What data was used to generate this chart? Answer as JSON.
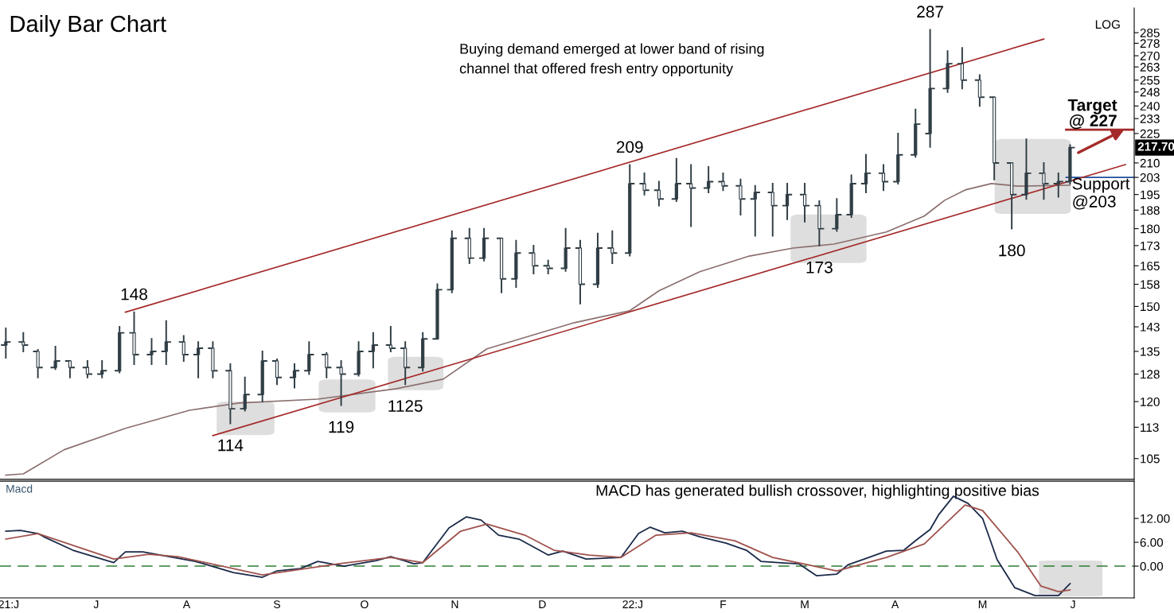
{
  "chart_data": [
    {
      "type": "candlestick",
      "title": "Daily Bar Chart",
      "color": "#2f3d45",
      "log": true,
      "tick_labels": "y",
      "x": [
        "2021-05-31",
        "2021-06-06",
        "2021-06-11",
        "2021-06-17",
        "2021-06-22",
        "2021-06-28",
        "2021-07-03",
        "2021-07-09",
        "2021-07-14",
        "2021-07-20",
        "2021-07-25",
        "2021-07-31",
        "2021-08-05",
        "2021-08-10",
        "2021-08-16",
        "2021-08-21",
        "2021-08-27",
        "2021-09-01",
        "2021-09-07",
        "2021-09-12",
        "2021-09-18",
        "2021-09-23",
        "2021-09-29",
        "2021-10-04",
        "2021-10-10",
        "2021-10-15",
        "2021-10-21",
        "2021-10-26",
        "2021-10-31",
        "2021-11-06",
        "2021-11-11",
        "2021-11-17",
        "2021-11-22",
        "2021-11-28",
        "2021-12-03",
        "2021-12-09",
        "2021-12-14",
        "2021-12-20",
        "2021-12-25",
        "2021-12-31",
        "2022-01-05",
        "2022-01-10",
        "2022-01-16",
        "2022-01-21",
        "2022-01-27",
        "2022-02-01",
        "2022-02-07",
        "2022-02-12",
        "2022-02-18",
        "2022-02-23",
        "2022-03-01",
        "2022-03-06",
        "2022-03-12",
        "2022-03-17",
        "2022-03-22",
        "2022-03-28",
        "2022-04-02",
        "2022-04-08",
        "2022-04-13",
        "2022-04-19",
        "2022-04-24",
        "2022-04-30",
        "2022-05-05",
        "2022-05-11",
        "2022-05-16",
        "2022-05-22",
        "2022-05-27",
        "2022-05-31"
      ],
      "ohlc": [
        [
          137,
          142.5,
          133,
          138
        ],
        [
          138,
          141,
          135,
          137
        ],
        [
          135,
          135.5,
          127,
          130
        ],
        [
          130,
          136.5,
          129.5,
          132
        ],
        [
          132,
          132,
          127,
          130
        ],
        [
          130,
          132,
          127,
          128
        ],
        [
          128,
          132,
          127,
          129
        ],
        [
          129,
          143,
          128.5,
          141
        ],
        [
          141,
          148,
          131,
          134
        ],
        [
          134,
          139,
          131,
          135
        ],
        [
          135,
          145,
          131,
          138
        ],
        [
          138,
          140,
          132,
          134
        ],
        [
          134,
          138,
          127,
          136
        ],
        [
          136,
          138,
          127,
          129
        ],
        [
          129,
          131,
          114,
          118
        ],
        [
          118,
          127,
          117.5,
          122
        ],
        [
          122,
          135,
          120,
          132
        ],
        [
          132,
          132.5,
          125,
          127
        ],
        [
          127,
          131,
          124,
          129
        ],
        [
          129,
          138,
          128,
          134
        ],
        [
          134,
          134.5,
          127,
          130
        ],
        [
          130,
          132,
          119,
          128
        ],
        [
          128,
          138,
          127.5,
          135
        ],
        [
          135,
          141,
          130,
          137
        ],
        [
          137,
          143,
          135,
          136
        ],
        [
          136,
          138,
          125,
          130
        ],
        [
          130,
          141,
          129,
          139
        ],
        [
          139,
          158,
          139,
          156
        ],
        [
          156,
          179,
          155,
          176
        ],
        [
          176,
          180,
          166,
          168
        ],
        [
          168,
          180,
          167,
          176
        ],
        [
          176,
          176,
          155,
          160
        ],
        [
          160,
          175,
          157,
          170
        ],
        [
          170,
          173,
          162,
          165
        ],
        [
          165,
          167,
          162,
          164
        ],
        [
          164,
          180,
          163,
          172
        ],
        [
          172,
          175,
          151,
          158
        ],
        [
          158,
          178,
          157,
          172
        ],
        [
          172,
          179,
          166,
          170
        ],
        [
          170,
          209,
          169,
          200
        ],
        [
          200,
          205,
          195,
          197
        ],
        [
          197,
          201,
          190,
          193
        ],
        [
          193,
          212,
          192,
          200
        ],
        [
          200,
          209,
          181,
          198
        ],
        [
          198,
          208,
          196,
          201
        ],
        [
          201,
          205,
          197,
          199
        ],
        [
          199,
          202,
          186,
          193
        ],
        [
          193,
          199,
          177,
          196
        ],
        [
          196,
          200,
          177,
          190
        ],
        [
          190,
          200,
          184,
          195
        ],
        [
          195,
          200,
          183,
          190
        ],
        [
          190,
          192,
          173,
          180
        ],
        [
          180,
          193,
          179,
          186
        ],
        [
          186,
          204,
          185,
          200
        ],
        [
          200,
          214,
          196,
          205
        ],
        [
          205,
          209,
          197,
          201
        ],
        [
          201,
          225,
          200,
          214
        ],
        [
          214,
          238,
          213,
          230
        ],
        [
          225,
          287,
          218,
          250
        ],
        [
          250,
          273,
          248,
          265
        ],
        [
          265,
          275,
          250,
          255
        ],
        [
          255,
          258,
          240,
          245
        ],
        [
          245,
          245,
          202,
          210
        ],
        [
          210,
          210,
          180,
          195
        ],
        [
          195,
          222,
          193,
          205
        ],
        [
          205,
          210,
          193,
          200
        ],
        [
          200,
          205,
          194,
          201
        ],
        [
          201,
          219,
          200,
          217.7
        ]
      ],
      "series": [
        {
          "type": "line",
          "color": "#8b6f6f",
          "x": [
            "2021-05-31",
            "2021-06-06",
            "2021-06-20",
            "2021-07-11",
            "2021-08-02",
            "2021-08-19",
            "2021-09-15",
            "2021-10-12",
            "2021-10-28",
            "2021-11-12",
            "2021-12-12",
            "2021-12-31",
            "2022-01-10",
            "2022-01-24",
            "2022-02-10",
            "2022-02-25",
            "2022-03-11",
            "2022-03-29",
            "2022-04-11",
            "2022-04-18",
            "2022-04-25",
            "2022-05-04",
            "2022-05-13",
            "2022-05-31"
          ],
          "values": [
            101,
            101.3,
            107.2,
            112.7,
            117.6,
            119.6,
            120.7,
            123.7,
            126.5,
            135.8,
            144.4,
            148.5,
            155.6,
            162.7,
            168.8,
            172,
            173.6,
            178.6,
            185.4,
            192.4,
            197.1,
            200.1,
            198.9,
            199.3
          ]
        },
        {
          "type": "line",
          "color": "#a52a2a",
          "x": [
            "2021-07-11",
            "2022-05-22"
          ],
          "values": [
            148,
            280.8
          ]
        },
        {
          "type": "line",
          "color": "#a52a2a",
          "x": [
            "2021-08-10",
            "2022-06-19"
          ],
          "values": [
            110.8,
            209.2
          ]
        }
      ],
      "xlim": [
        "2021-05-29",
        "2022-06-22"
      ],
      "ylim": [
        100,
        302
      ],
      "yticks": [
        105,
        113,
        120,
        128,
        135,
        143,
        150,
        158,
        165,
        173,
        180,
        188,
        195,
        203,
        210,
        225,
        233,
        240,
        248,
        255,
        263,
        270,
        278,
        285
      ],
      "ref_lines": [
        {
          "axis": "y",
          "value": 227,
          "label": "Target\n@ 227",
          "color": "#a52a2a"
        },
        {
          "axis": "y",
          "value": 203,
          "label": "Support\n@203",
          "color": "#1f4e9a"
        }
      ],
      "annotations": [
        "Buying demand emerged at lower band of rising\nchannel that offered fresh entry opportunity",
        "LOG",
        "217.70",
        {
          "text": "148",
          "x": "2021-07-14",
          "y": 148
        },
        {
          "text": "114",
          "x": "2021-08-16",
          "y": 114
        },
        {
          "text": "119",
          "x": "2021-09-23",
          "y": 119
        },
        {
          "text": "1125",
          "x": "2021-10-15",
          "y": 125
        },
        {
          "text": "209",
          "x": "2021-12-31",
          "y": 209
        },
        {
          "text": "173",
          "x": "2022-03-06",
          "y": 173
        },
        {
          "text": "287",
          "x": "2022-04-13",
          "y": 287
        },
        {
          "text": "180",
          "x": "2022-05-11",
          "y": 180
        }
      ]
    },
    {
      "type": "line",
      "title": "Macd",
      "series": [
        {
          "color": "#1b2a49",
          "x": [
            "2021-05-31",
            "2021-06-05",
            "2021-06-11",
            "2021-06-13",
            "2021-06-23",
            "2021-07-07",
            "2021-07-11",
            "2021-07-17",
            "2021-07-26",
            "2021-08-04",
            "2021-08-17",
            "2021-08-27",
            "2021-09-01",
            "2021-09-09",
            "2021-09-15",
            "2021-09-24",
            "2021-10-05",
            "2021-10-10",
            "2021-10-18",
            "2021-10-21",
            "2021-10-30",
            "2021-11-05",
            "2021-11-10",
            "2021-11-16",
            "2021-11-23",
            "2021-12-03",
            "2021-12-08",
            "2021-12-16",
            "2021-12-28",
            "2022-01-03",
            "2022-01-07",
            "2022-01-12",
            "2022-01-18",
            "2022-01-24",
            "2022-02-02",
            "2022-02-09",
            "2022-02-14",
            "2022-02-22",
            "2022-02-27",
            "2022-03-05",
            "2022-03-12",
            "2022-03-16",
            "2022-03-23",
            "2022-03-29",
            "2022-04-04",
            "2022-04-08",
            "2022-04-13",
            "2022-04-16",
            "2022-04-21",
            "2022-04-26",
            "2022-05-01",
            "2022-05-06",
            "2022-05-12",
            "2022-05-19",
            "2022-05-27",
            "2022-05-31"
          ],
          "values": [
            8.8,
            9.0,
            8.2,
            7.4,
            4.0,
            0.9,
            3.6,
            3.6,
            2.4,
            1.2,
            -1.6,
            -2.8,
            -1.2,
            -0.6,
            1.2,
            0,
            1.4,
            2.4,
            0.6,
            0.9,
            9.6,
            12.4,
            11.6,
            7.8,
            6.8,
            2.8,
            3.8,
            1.8,
            2.2,
            8.2,
            9.8,
            8.4,
            8.8,
            7.4,
            5.8,
            4.0,
            1.2,
            0.8,
            0.6,
            -2.4,
            -2.0,
            0.4,
            2.2,
            3.8,
            4.0,
            6.4,
            9.2,
            13.0,
            17.6,
            15.8,
            12.0,
            1.6,
            -5.4,
            -7.4,
            -7.4,
            -4.4
          ]
        },
        {
          "color": "#a0524d",
          "x": [
            "2021-05-31",
            "2021-06-11",
            "2021-07-07",
            "2021-07-19",
            "2021-07-29",
            "2021-08-27",
            "2021-09-22",
            "2021-10-10",
            "2021-10-21",
            "2021-11-03",
            "2021-11-12",
            "2021-11-25",
            "2021-12-05",
            "2021-12-17",
            "2021-12-28",
            "2022-01-09",
            "2022-01-21",
            "2022-02-05",
            "2022-02-18",
            "2022-03-03",
            "2022-03-12",
            "2022-03-29",
            "2022-04-11",
            "2022-04-25",
            "2022-05-01",
            "2022-05-13",
            "2022-05-21",
            "2022-05-27",
            "2022-05-31"
          ],
          "values": [
            6.8,
            8.2,
            1.8,
            3.0,
            2.4,
            -2.2,
            0.6,
            2.2,
            0.9,
            8.8,
            10.6,
            7.8,
            4.0,
            2.8,
            2.2,
            7.8,
            8.4,
            6.4,
            2.2,
            0.2,
            -1.2,
            2.2,
            5.6,
            15.4,
            14.0,
            3.6,
            -5.0,
            -6.4,
            -6.0
          ]
        }
      ],
      "xlim": [
        "2021-05-29",
        "2022-06-22"
      ],
      "ylim": [
        -8,
        21.4
      ],
      "xticks": [
        {
          "value": "2021-06-01",
          "label": "21:J"
        },
        {
          "value": "2021-07-01",
          "label": "J"
        },
        {
          "value": "2021-08-01",
          "label": "A"
        },
        {
          "value": "2021-09-01",
          "label": "S"
        },
        {
          "value": "2021-10-01",
          "label": "O"
        },
        {
          "value": "2021-11-01",
          "label": "N"
        },
        {
          "value": "2021-12-01",
          "label": "D"
        },
        {
          "value": "2022-01-01",
          "label": "22:J"
        },
        {
          "value": "2022-02-01",
          "label": "F"
        },
        {
          "value": "2022-03-01",
          "label": "M"
        },
        {
          "value": "2022-04-01",
          "label": "A"
        },
        {
          "value": "2022-05-01",
          "label": "M"
        },
        {
          "value": "2022-06-01",
          "label": "J"
        }
      ],
      "yticks": [
        {
          "value": 12,
          "label": "12.00"
        },
        {
          "value": 6,
          "label": "6.00"
        },
        {
          "value": 0,
          "label": "0.00"
        }
      ],
      "ref_lines": [
        {
          "axis": "y",
          "value": 0,
          "color": "#2e7d32",
          "line_style": "dashed"
        }
      ],
      "annotations": [
        "MACD has generated bullish crossover, highlighting positive bias"
      ]
    }
  ]
}
